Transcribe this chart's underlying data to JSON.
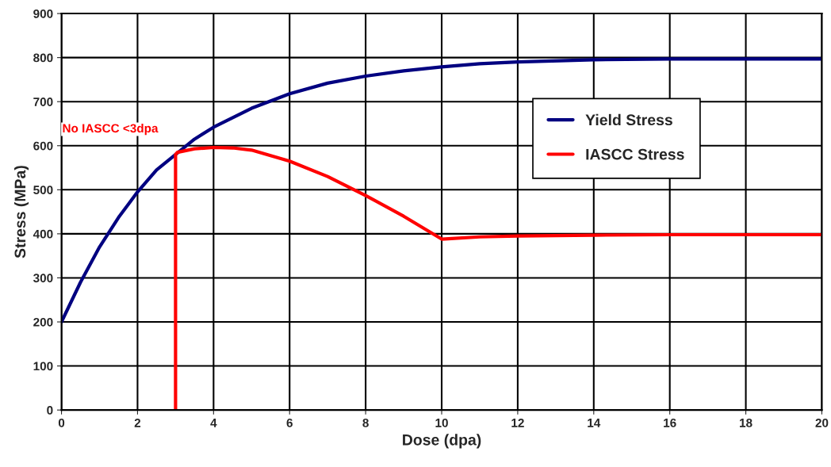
{
  "chart_data": {
    "type": "line",
    "xlabel": "Dose (dpa)",
    "ylabel": "Stress (MPa)",
    "xlim": [
      0,
      20
    ],
    "ylim": [
      0,
      900
    ],
    "xticks": [
      0,
      2,
      4,
      6,
      8,
      10,
      12,
      14,
      16,
      18,
      20
    ],
    "yticks": [
      0,
      100,
      200,
      300,
      400,
      500,
      600,
      700,
      800,
      900
    ],
    "grid": true,
    "legend": "right",
    "line_style": "solid",
    "marker": "none",
    "annotations": [
      "No IASCC <3dpa"
    ],
    "series": [
      {
        "name": "Yield Stress",
        "color": "#000080",
        "x": [
          0,
          0.5,
          1,
          1.5,
          2,
          2.5,
          3,
          3.5,
          4,
          5,
          6,
          7,
          8,
          9,
          10,
          11,
          12,
          14,
          16,
          18,
          20
        ],
        "values": [
          200,
          290,
          370,
          437,
          495,
          545,
          580,
          615,
          642,
          685,
          718,
          742,
          758,
          770,
          779,
          786,
          790,
          795,
          797,
          797,
          797
        ]
      },
      {
        "name": "IASCC Stress",
        "color": "#ff0000",
        "x": [
          3,
          3,
          3.05,
          3.5,
          4,
          4.5,
          5,
          6,
          7,
          8,
          9,
          10,
          11,
          12,
          14,
          16,
          20
        ],
        "values": [
          0,
          580,
          585,
          593,
          596,
          595,
          590,
          565,
          530,
          487,
          440,
          388,
          393,
          395,
          397,
          398,
          398
        ]
      }
    ]
  }
}
